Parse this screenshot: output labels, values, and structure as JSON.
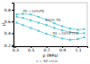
{
  "chart_data": {
    "type": "line",
    "xlabel": "p (MPa)",
    "ylabel": "μ",
    "footnote": "v = 60 cm/s",
    "x": [
      0.32,
      0.4,
      0.5,
      0.6,
      0.7,
      0.8,
      0.9,
      1.0,
      1.1,
      1.18
    ],
    "series": [
      {
        "color": "#60c8d5",
        "marker": "circle",
        "values": [
          0.72,
          0.73,
          0.72,
          0.68,
          0.63,
          0.57,
          0.52,
          0.48,
          0.46,
          0.47
        ]
      },
      {
        "color": "#60c8d5",
        "marker": "square",
        "values": [
          0.68,
          0.66,
          0.62,
          0.58,
          0.54,
          0.49,
          0.45,
          0.42,
          0.4,
          0.4
        ]
      },
      {
        "color": "#60c8d5",
        "marker": "triangle",
        "values": [
          0.58,
          0.54,
          0.49,
          0.44,
          0.39,
          0.35,
          0.31,
          0.29,
          0.3,
          0.33
        ]
      }
    ],
    "annotations": [
      {
        "text": "PA =10%PB",
        "x": 0.4,
        "y": 0.76
      },
      {
        "text": "100% PA",
        "x": 0.68,
        "y": 0.6
      },
      {
        "text": "PA =20%PTFE",
        "x": 0.78,
        "y": 0.37
      }
    ],
    "xlim": [
      0.28,
      1.22
    ],
    "ylim": [
      0.18,
      0.92
    ],
    "xticks": [
      0.3,
      0.5,
      0.7,
      0.9,
      1.1
    ],
    "yticks": [
      0.2,
      0.4,
      0.6,
      0.8
    ]
  }
}
